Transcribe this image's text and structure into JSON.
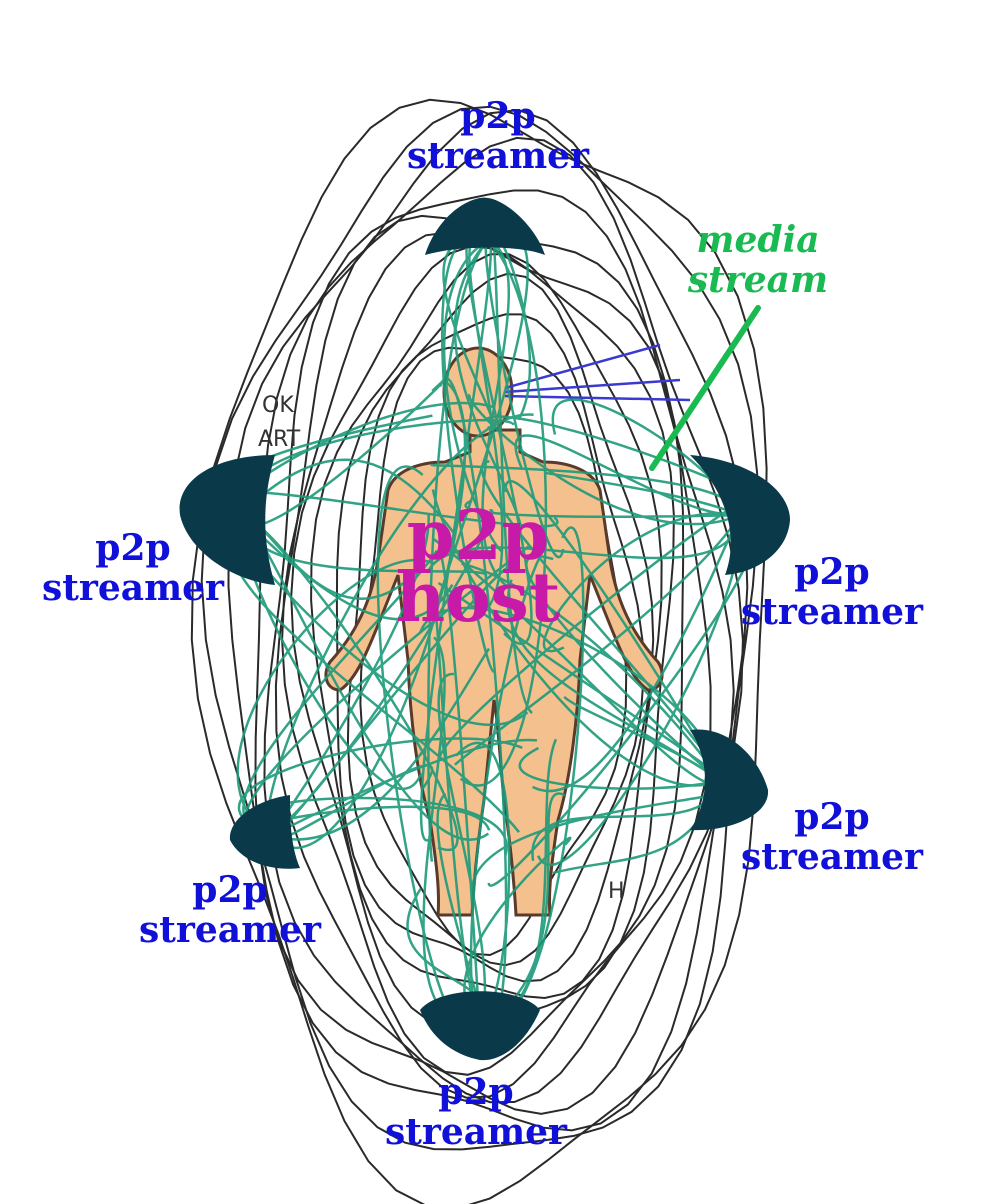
{
  "colors": {
    "streamer_label": "#1010d8",
    "host_label": "#c81aa8",
    "media_label": "#1aba52",
    "skin": "#f4c08e",
    "field_lines": "#2a2a2a",
    "stream_lines": "#1d9a7a",
    "node": "#0a3a4a",
    "eye_rays": "#3a3ad0"
  },
  "host": {
    "line1": "p2p",
    "line2": "host"
  },
  "media": {
    "line1": "media",
    "line2": "stream"
  },
  "streamers": [
    {
      "id": "top",
      "line1": "p2p",
      "line2": "streamer"
    },
    {
      "id": "left",
      "line1": "p2p",
      "line2": "streamer"
    },
    {
      "id": "right-upper",
      "line1": "p2p",
      "line2": "streamer"
    },
    {
      "id": "right-lower",
      "line1": "p2p",
      "line2": "streamer"
    },
    {
      "id": "left-lower",
      "line1": "p2p",
      "line2": "streamer"
    },
    {
      "id": "bottom",
      "line1": "p2p",
      "line2": "streamer"
    }
  ],
  "background_marks": [
    "OK",
    "ART",
    "H"
  ]
}
